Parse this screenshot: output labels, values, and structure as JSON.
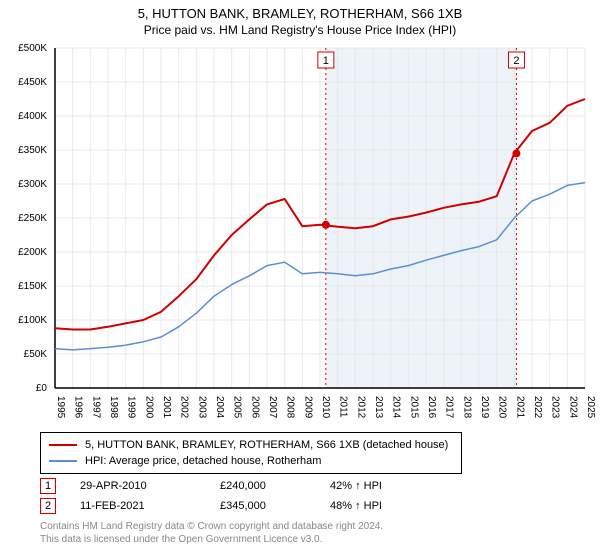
{
  "title_line1": "5, HUTTON BANK, BRAMLEY, ROTHERHAM, S66 1XB",
  "title_line2": "Price paid vs. HM Land Registry's House Price Index (HPI)",
  "chart": {
    "type": "line",
    "background_color": "#ffffff",
    "grid_color": "#e8e8e8",
    "axis_color": "#000000",
    "title_fontsize": 13,
    "subtitle_fontsize": 12,
    "tick_fontsize": 10,
    "x_years": [
      1995,
      1996,
      1997,
      1998,
      1999,
      2000,
      2001,
      2002,
      2003,
      2004,
      2005,
      2006,
      2007,
      2008,
      2009,
      2010,
      2011,
      2012,
      2013,
      2014,
      2015,
      2016,
      2017,
      2018,
      2019,
      2020,
      2021,
      2022,
      2023,
      2024,
      2025
    ],
    "xlim": [
      1995,
      2025
    ],
    "ylim": [
      0,
      500000
    ],
    "ytick_step": 50000,
    "ytick_labels": [
      "£0",
      "£50K",
      "£100K",
      "£150K",
      "£200K",
      "£250K",
      "£300K",
      "£350K",
      "£400K",
      "£450K",
      "£500K"
    ],
    "shaded_band": {
      "from_year": 2010.33,
      "to_year": 2021.12,
      "fill": "#eef3f9"
    },
    "series": [
      {
        "name": "property_price",
        "label": "5, HUTTON BANK, BRAMLEY, ROTHERHAM, S66 1XB (detached house)",
        "color": "#d00000",
        "line_width": 2,
        "dash": "none",
        "points_year_value": [
          [
            1995,
            88000
          ],
          [
            1996,
            86000
          ],
          [
            1997,
            86000
          ],
          [
            1998,
            90000
          ],
          [
            1999,
            95000
          ],
          [
            2000,
            100000
          ],
          [
            2001,
            112000
          ],
          [
            2002,
            135000
          ],
          [
            2003,
            160000
          ],
          [
            2004,
            195000
          ],
          [
            2005,
            225000
          ],
          [
            2006,
            248000
          ],
          [
            2007,
            270000
          ],
          [
            2008,
            278000
          ],
          [
            2009,
            238000
          ],
          [
            2010,
            240000
          ],
          [
            2011,
            237000
          ],
          [
            2012,
            235000
          ],
          [
            2013,
            238000
          ],
          [
            2014,
            248000
          ],
          [
            2015,
            252000
          ],
          [
            2016,
            258000
          ],
          [
            2017,
            265000
          ],
          [
            2018,
            270000
          ],
          [
            2019,
            274000
          ],
          [
            2020,
            282000
          ],
          [
            2021,
            345000
          ],
          [
            2022,
            378000
          ],
          [
            2023,
            390000
          ],
          [
            2024,
            415000
          ],
          [
            2025,
            425000
          ]
        ]
      },
      {
        "name": "hpi",
        "label": "HPI: Average price, detached house, Rotherham",
        "color": "#5a8fd6",
        "line_width": 1.5,
        "dash": "none",
        "points_year_value": [
          [
            1995,
            58000
          ],
          [
            1996,
            56000
          ],
          [
            1997,
            58000
          ],
          [
            1998,
            60000
          ],
          [
            1999,
            63000
          ],
          [
            2000,
            68000
          ],
          [
            2001,
            75000
          ],
          [
            2002,
            90000
          ],
          [
            2003,
            110000
          ],
          [
            2004,
            135000
          ],
          [
            2005,
            152000
          ],
          [
            2006,
            165000
          ],
          [
            2007,
            180000
          ],
          [
            2008,
            185000
          ],
          [
            2009,
            168000
          ],
          [
            2010,
            170000
          ],
          [
            2011,
            168000
          ],
          [
            2012,
            165000
          ],
          [
            2013,
            168000
          ],
          [
            2014,
            175000
          ],
          [
            2015,
            180000
          ],
          [
            2016,
            188000
          ],
          [
            2017,
            195000
          ],
          [
            2018,
            202000
          ],
          [
            2019,
            208000
          ],
          [
            2020,
            218000
          ],
          [
            2021,
            250000
          ],
          [
            2022,
            275000
          ],
          [
            2023,
            285000
          ],
          [
            2024,
            298000
          ],
          [
            2025,
            302000
          ]
        ]
      }
    ],
    "sale_markers": [
      {
        "n": "1",
        "year": 2010.33,
        "value": 240000,
        "border_color": "#d00000",
        "dot_color": "#d00000"
      },
      {
        "n": "2",
        "year": 2021.12,
        "value": 345000,
        "border_color": "#d00000",
        "dot_color": "#d00000"
      }
    ]
  },
  "legend": {
    "border_color": "#000000",
    "rows": [
      {
        "color": "#d00000",
        "label": "5, HUTTON BANK, BRAMLEY, ROTHERHAM, S66 1XB (detached house)"
      },
      {
        "color": "#5a8fd6",
        "label": "HPI: Average price, detached house, Rotherham"
      }
    ]
  },
  "transactions": [
    {
      "n": "1",
      "date": "29-APR-2010",
      "price": "£240,000",
      "pct": "42% ↑ HPI",
      "border_color": "#d00000"
    },
    {
      "n": "2",
      "date": "11-FEB-2021",
      "price": "£345,000",
      "pct": "48% ↑ HPI",
      "border_color": "#d00000"
    }
  ],
  "footer_line1": "Contains HM Land Registry data © Crown copyright and database right 2024.",
  "footer_line2": "This data is licensed under the Open Government Licence v3.0."
}
